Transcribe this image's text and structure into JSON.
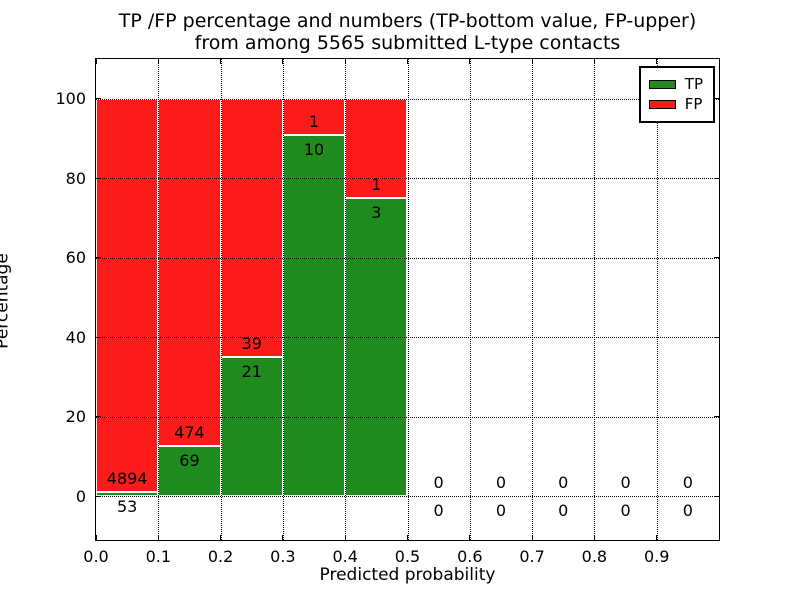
{
  "chart_data": {
    "type": "bar",
    "stacked": true,
    "title_line1": "TP /FP percentage and numbers (TP-bottom value, FP-upper)",
    "title_line2": "from among 5565 submitted L-type contacts",
    "xlabel": "Predicted probability",
    "ylabel": "Percentage",
    "xlim": [
      0.0,
      1.0
    ],
    "ylim": [
      -11,
      110
    ],
    "x_ticks": [
      "0.0",
      "0.1",
      "0.2",
      "0.3",
      "0.4",
      "0.5",
      "0.6",
      "0.7",
      "0.8",
      "0.9"
    ],
    "y_ticks": [
      "0",
      "20",
      "40",
      "60",
      "80",
      "100"
    ],
    "grid": true,
    "grid_style": "dotted",
    "legend_position": "upper right",
    "colors": {
      "tp": "#1F8B1F",
      "fp": "#FC1B1B",
      "bar_edge": "#ffffff"
    },
    "legend": [
      {
        "name": "TP",
        "color": "#1F8B1F"
      },
      {
        "name": "FP",
        "color": "#FC1B1B"
      }
    ],
    "bins": [
      {
        "range": [
          0.0,
          0.1
        ],
        "tp_count": 53,
        "fp_count": 4894,
        "tp_pct": 1.07,
        "fp_pct": 98.93
      },
      {
        "range": [
          0.1,
          0.2
        ],
        "tp_count": 69,
        "fp_count": 474,
        "tp_pct": 12.71,
        "fp_pct": 87.29
      },
      {
        "range": [
          0.2,
          0.3
        ],
        "tp_count": 21,
        "fp_count": 39,
        "tp_pct": 35.0,
        "fp_pct": 65.0
      },
      {
        "range": [
          0.3,
          0.4
        ],
        "tp_count": 10,
        "fp_count": 1,
        "tp_pct": 90.91,
        "fp_pct": 9.09
      },
      {
        "range": [
          0.4,
          0.5
        ],
        "tp_count": 3,
        "fp_count": 1,
        "tp_pct": 75.0,
        "fp_pct": 25.0
      },
      {
        "range": [
          0.5,
          0.6
        ],
        "tp_count": 0,
        "fp_count": 0,
        "tp_pct": 0,
        "fp_pct": 0
      },
      {
        "range": [
          0.6,
          0.7
        ],
        "tp_count": 0,
        "fp_count": 0,
        "tp_pct": 0,
        "fp_pct": 0
      },
      {
        "range": [
          0.7,
          0.8
        ],
        "tp_count": 0,
        "fp_count": 0,
        "tp_pct": 0,
        "fp_pct": 0
      },
      {
        "range": [
          0.8,
          0.9
        ],
        "tp_count": 0,
        "fp_count": 0,
        "tp_pct": 0,
        "fp_pct": 0
      },
      {
        "range": [
          0.9,
          1.0
        ],
        "tp_count": 0,
        "fp_count": 0,
        "tp_pct": 0,
        "fp_pct": 0
      }
    ]
  }
}
